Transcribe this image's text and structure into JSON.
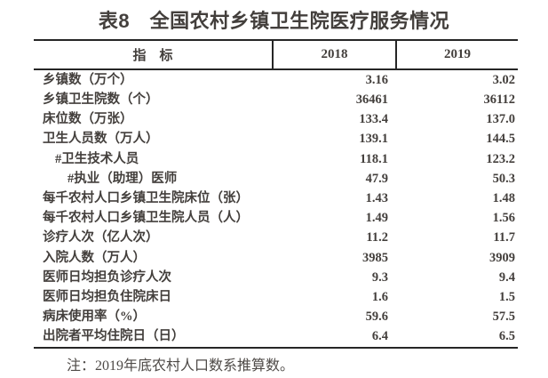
{
  "page": {
    "title": "表8　全国农村乡镇卫生院医疗服务情况",
    "note": "注：2019年底农村人口数系推算数。"
  },
  "table": {
    "columns": [
      "指　标",
      "2018",
      "2019"
    ],
    "rows": [
      {
        "label": "乡镇数（万个）",
        "indent": 0,
        "y2018": "3.16",
        "y2019": "3.02"
      },
      {
        "label": "乡镇卫生院数（个）",
        "indent": 0,
        "y2018": "36461",
        "y2019": "36112"
      },
      {
        "label": "床位数（万张）",
        "indent": 0,
        "y2018": "133.4",
        "y2019": "137.0"
      },
      {
        "label": "卫生人员数（万人）",
        "indent": 0,
        "y2018": "139.1",
        "y2019": "144.5"
      },
      {
        "label": "#卫生技术人员",
        "indent": 1,
        "y2018": "118.1",
        "y2019": "123.2"
      },
      {
        "label": "#执业（助理）医师",
        "indent": 2,
        "y2018": "47.9",
        "y2019": "50.3"
      },
      {
        "label": "每千农村人口乡镇卫生院床位（张）",
        "indent": 0,
        "y2018": "1.43",
        "y2019": "1.48"
      },
      {
        "label": "每千农村人口乡镇卫生院人员（人）",
        "indent": 0,
        "y2018": "1.49",
        "y2019": "1.56"
      },
      {
        "label": "诊疗人次（亿人次）",
        "indent": 0,
        "y2018": "11.2",
        "y2019": "11.7"
      },
      {
        "label": "入院人数（万人）",
        "indent": 0,
        "y2018": "3985",
        "y2019": "3909"
      },
      {
        "label": "医师日均担负诊疗人次",
        "indent": 0,
        "y2018": "9.3",
        "y2019": "9.4"
      },
      {
        "label": "医师日均担负住院床日",
        "indent": 0,
        "y2018": "1.6",
        "y2019": "1.5"
      },
      {
        "label": "病床使用率（%）",
        "indent": 0,
        "y2018": "59.6",
        "y2019": "57.5"
      },
      {
        "label": "出院者平均住院日（日）",
        "indent": 0,
        "y2018": "6.4",
        "y2019": "6.5"
      }
    ]
  },
  "colors": {
    "text": "#433f3c",
    "border": "#262626",
    "note_text": "#4e4a47",
    "background": "#ffffff"
  }
}
